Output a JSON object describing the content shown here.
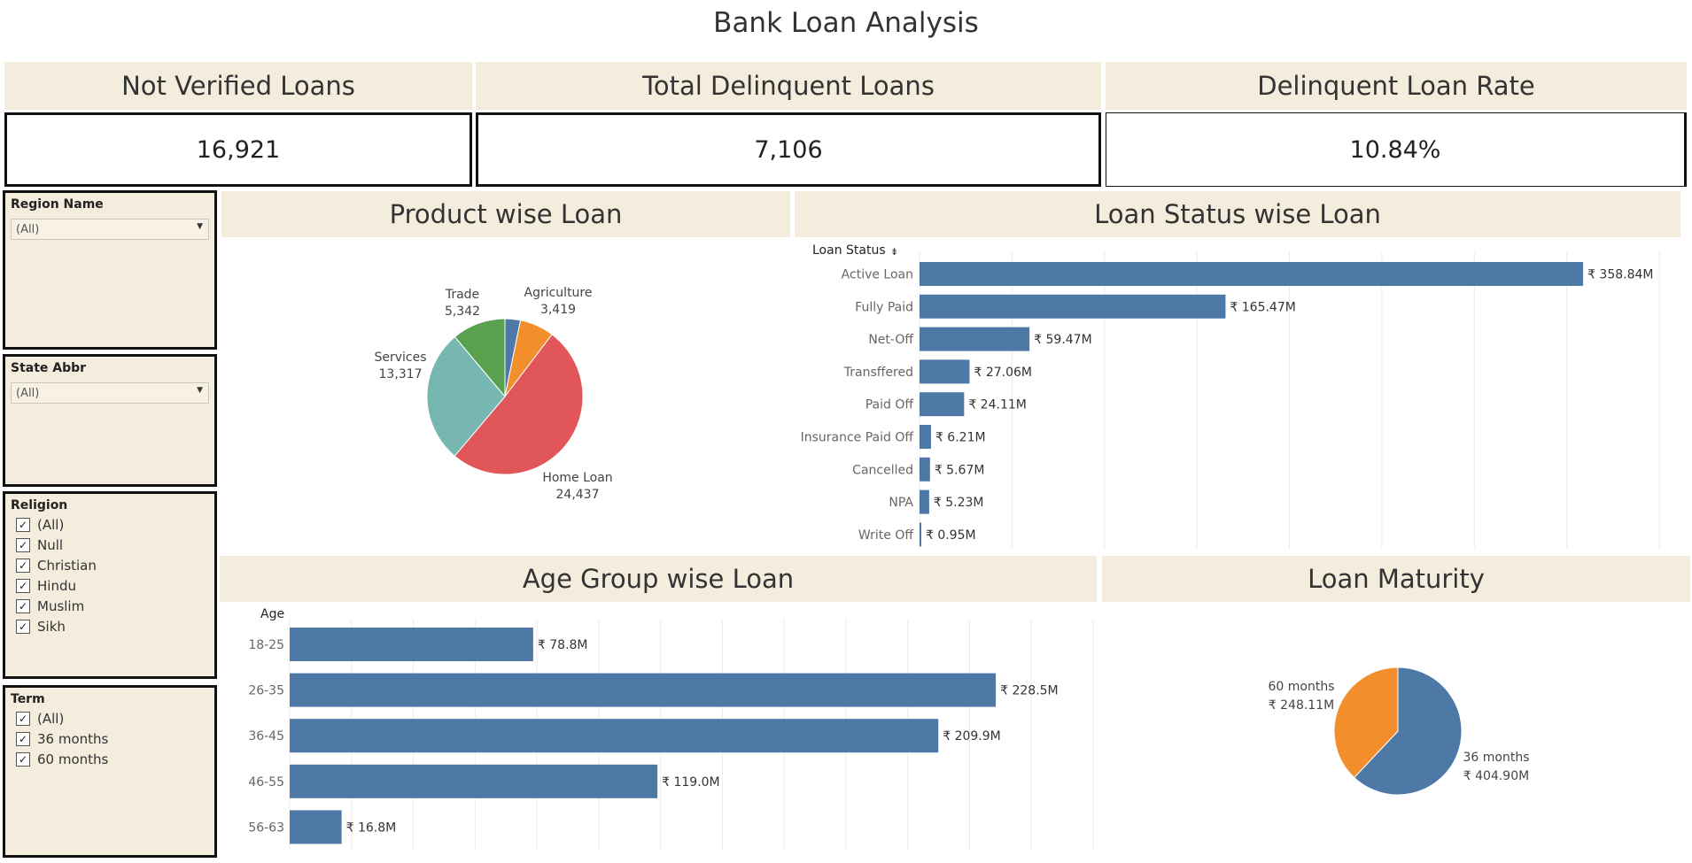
{
  "title": "Bank Loan Analysis",
  "kpis": [
    {
      "label": "Not Verified Loans",
      "value": "16,921"
    },
    {
      "label": "Total Delinquent Loans",
      "value": "7,106"
    },
    {
      "label": "Delinquent Loan Rate",
      "value": "10.84%"
    }
  ],
  "filters": {
    "region": {
      "label": "Region Name",
      "value": "(All)"
    },
    "state": {
      "label": "State Abbr",
      "value": "(All)"
    },
    "religion": {
      "label": "Religion",
      "options": [
        "(All)",
        "Null",
        "Christian",
        "Hindu",
        "Muslim",
        "Sikh"
      ]
    },
    "term": {
      "label": "Term",
      "options": [
        "(All)",
        "36 months",
        "60 months"
      ]
    }
  },
  "chart_data": [
    {
      "type": "pie",
      "title": "Product wise Loan",
      "categories": [
        "Agriculture",
        "Home Loan",
        "Services",
        "Trade"
      ],
      "values": [
        3419,
        24437,
        13317,
        5342
      ],
      "value_labels": [
        "3,419",
        "24,437",
        "13,317",
        "5,342"
      ],
      "colors": [
        "#4e79a7",
        "#f28e2b",
        "#e15759",
        "#76b7b2",
        "#59a14f"
      ],
      "slice_colors": [
        "#4e79a7",
        "#f28e2b",
        "#e15759",
        "#76b7b2",
        "#59a14f"
      ],
      "all_categories": [
        "Agriculture",
        "",
        "Home Loan",
        "Services",
        "Trade"
      ]
    },
    {
      "type": "bar",
      "title": "Loan Status wise Loan",
      "ylabel": "Loan Status",
      "categories": [
        "Active Loan",
        "Fully Paid",
        "Net-Off",
        "Transffered",
        "Paid Off",
        "Insurance Paid Off",
        "Cancelled",
        "NPA",
        "Write Off"
      ],
      "values": [
        358.84,
        165.47,
        59.47,
        27.06,
        24.11,
        6.21,
        5.67,
        5.23,
        0.95
      ],
      "value_labels": [
        "₹ 358.84M",
        "₹ 165.47M",
        "₹ 59.47M",
        "₹ 27.06M",
        "₹ 24.11M",
        "₹ 6.21M",
        "₹ 5.67M",
        "₹ 5.23M",
        "₹ 0.95M"
      ],
      "xlim": [
        0,
        400
      ],
      "color": "#4e79a7"
    },
    {
      "type": "bar",
      "title": "Age Group wise Loan",
      "ylabel": "Age",
      "categories": [
        "18-25",
        "26-35",
        "36-45",
        "46-55",
        "56-63"
      ],
      "values": [
        78.8,
        228.5,
        209.9,
        119.0,
        16.8
      ],
      "value_labels": [
        "₹ 78.8M",
        "₹ 228.5M",
        "₹ 209.9M",
        "₹ 119.0M",
        "₹ 16.8M"
      ],
      "xlim": [
        0,
        260
      ],
      "color": "#4e79a7"
    },
    {
      "type": "pie",
      "title": "Loan Maturity",
      "categories": [
        "36 months",
        "60 months"
      ],
      "values": [
        404.9,
        248.11
      ],
      "value_labels": [
        "₹ 404.90M",
        "₹ 248.11M"
      ],
      "colors": [
        "#4e79a7",
        "#f28e2b"
      ]
    }
  ]
}
